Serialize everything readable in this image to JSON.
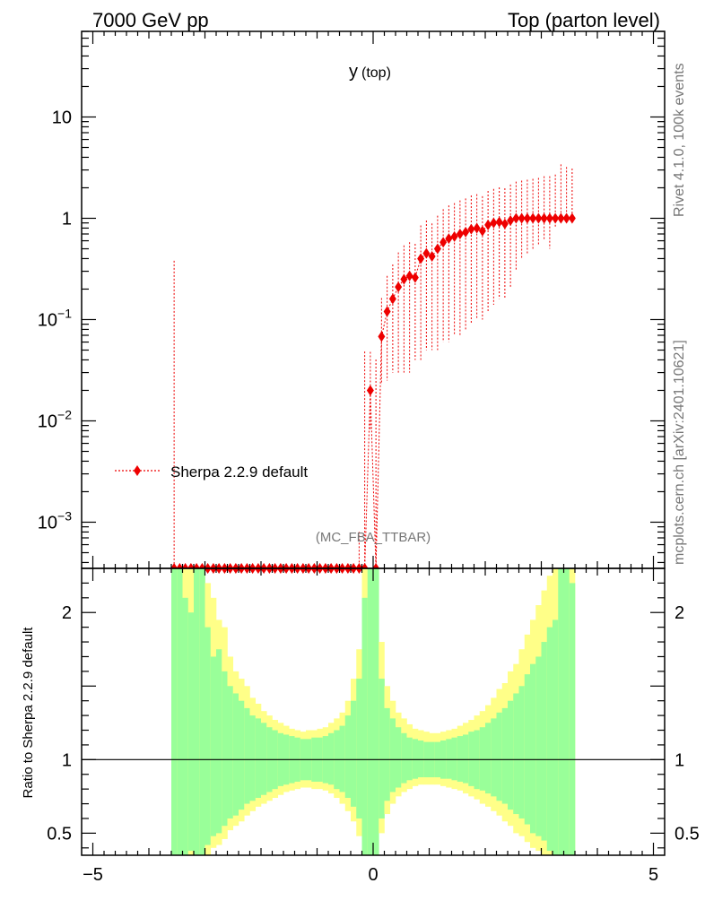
{
  "header": {
    "energy": "7000 GeV pp",
    "process": "Top (parton level)"
  },
  "side": {
    "rivet": "Rivet 4.1.0,  100k events",
    "source": "mcplots.cern.ch [arXiv:2401.10621]"
  },
  "chart_data": {
    "type": "line",
    "title_main": "y",
    "title_sub": "(top)",
    "analysis": "(MC_FBA_TTBAR)",
    "legend": "Sherpa 2.2.9 default",
    "ylabel_ratio": "Ratio to Sherpa 2.2.9 default",
    "colors": {
      "series": "#ee0000",
      "band_inner": "#99ff99",
      "band_outer": "#ffff88"
    },
    "xlim": [
      -5.2,
      5.2
    ],
    "ylim_main": [
      0.00035,
      70
    ],
    "ylim_ratio": [
      0.35,
      2.3
    ],
    "x_ticks": [
      "−5",
      "0",
      "5"
    ],
    "y_ticks_main": [
      {
        "value": 10,
        "base": "10",
        "exp": ""
      },
      {
        "value": 1,
        "base": "1",
        "exp": ""
      },
      {
        "value": 0.1,
        "base": "10",
        "exp": "−1"
      },
      {
        "value": 0.01,
        "base": "10",
        "exp": "−2"
      },
      {
        "value": 0.001,
        "base": "10",
        "exp": "−3"
      }
    ],
    "y_ticks_ratio": [
      {
        "value": 2,
        "label": "2"
      },
      {
        "value": 1,
        "label": "1"
      },
      {
        "value": 0.5,
        "label": "0.5"
      }
    ],
    "series": [
      {
        "name": "Sherpa 2.2.9 default",
        "x": [
          -3.55,
          -3.45,
          -3.35,
          -3.25,
          -3.15,
          -3.05,
          -2.95,
          -2.85,
          -2.75,
          -2.65,
          -2.55,
          -2.45,
          -2.35,
          -2.25,
          -2.15,
          -2.05,
          -1.95,
          -1.85,
          -1.75,
          -1.65,
          -1.55,
          -1.45,
          -1.35,
          -1.25,
          -1.15,
          -1.05,
          -0.95,
          -0.85,
          -0.75,
          -0.65,
          -0.55,
          -0.45,
          -0.35,
          -0.25,
          -0.15,
          -0.05,
          0.05,
          0.15,
          0.25,
          0.35,
          0.45,
          0.55,
          0.65,
          0.75,
          0.85,
          0.95,
          1.05,
          1.15,
          1.25,
          1.35,
          1.45,
          1.55,
          1.65,
          1.75,
          1.85,
          1.95,
          2.05,
          2.15,
          2.25,
          2.35,
          2.45,
          2.55,
          2.65,
          2.75,
          2.85,
          2.95,
          3.05,
          3.15,
          3.25,
          3.35,
          3.45,
          3.55
        ],
        "y": [
          0.00035,
          0.00035,
          0.00035,
          0.00035,
          0.00035,
          0.00035,
          0.00035,
          0.00035,
          0.00035,
          0.00035,
          0.00035,
          0.00035,
          0.00035,
          0.00035,
          0.00035,
          0.00035,
          0.00035,
          0.00035,
          0.00035,
          0.00035,
          0.00035,
          0.00035,
          0.00035,
          0.00035,
          0.00035,
          0.00035,
          0.00035,
          0.00035,
          0.00035,
          0.00035,
          0.00035,
          0.00035,
          0.00035,
          0.00035,
          0.00035,
          0.02,
          0.00035,
          0.068,
          0.12,
          0.16,
          0.21,
          0.25,
          0.27,
          0.26,
          0.4,
          0.45,
          0.42,
          0.5,
          0.58,
          0.63,
          0.66,
          0.7,
          0.73,
          0.78,
          0.8,
          0.75,
          0.86,
          0.9,
          0.92,
          0.88,
          0.95,
          1.0,
          1.0,
          1.0,
          1.0,
          1.0,
          1.0,
          1.0,
          1.0,
          1.0,
          1.0,
          1.0
        ],
        "err_up": [
          0.38,
          0.0,
          0.0,
          0.0,
          0.0,
          0.0,
          0.0,
          0.0,
          0.0,
          0.0,
          0.0,
          0.0,
          0.0,
          0.0,
          0.0,
          0.0,
          0.0,
          0.0,
          0.0,
          0.0,
          0.0,
          0.0,
          0.0,
          0.0,
          0.0,
          0.0,
          0.0,
          0.0,
          0.0,
          0.0,
          0.0,
          0.0,
          0.0,
          0.00045,
          0.048,
          0.028,
          0.04,
          0.095,
          0.15,
          0.19,
          0.25,
          0.29,
          0.31,
          0.3,
          0.45,
          0.5,
          0.47,
          0.56,
          0.65,
          0.71,
          0.75,
          0.8,
          0.84,
          0.9,
          0.93,
          0.9,
          1.0,
          1.05,
          1.1,
          1.1,
          1.2,
          1.3,
          1.35,
          1.4,
          1.45,
          1.5,
          1.6,
          1.6,
          1.7,
          2.4,
          2.2,
          2.1
        ],
        "err_dn": [
          0.0,
          0.0,
          0.0,
          0.0,
          0.0,
          0.0,
          0.0,
          0.0,
          0.0,
          0.0,
          0.0,
          0.0,
          0.0,
          0.0,
          0.0,
          0.0,
          0.0,
          0.0,
          0.0,
          0.0,
          0.0,
          0.0,
          0.0,
          0.0,
          0.0,
          0.0,
          0.0,
          0.0,
          0.0,
          0.0,
          0.0,
          0.0,
          0.0,
          0.0,
          0.0,
          0.012,
          0.0,
          0.045,
          0.095,
          0.13,
          0.18,
          0.22,
          0.24,
          0.22,
          0.36,
          0.4,
          0.37,
          0.45,
          0.52,
          0.57,
          0.59,
          0.63,
          0.65,
          0.69,
          0.7,
          0.65,
          0.74,
          0.76,
          0.76,
          0.72,
          0.74,
          0.7,
          0.6,
          0.55,
          0.5,
          0.45,
          0.4,
          0.5,
          0.2,
          0.0,
          0.0,
          0.0
        ]
      }
    ],
    "ratio_bands": {
      "edges": [
        -3.6,
        3.6
      ],
      "bin_width": 0.1,
      "inner_up": [
        2.3,
        2.3,
        2.1,
        2.0,
        2.3,
        2.3,
        1.9,
        1.7,
        1.75,
        1.6,
        1.5,
        1.45,
        1.4,
        1.35,
        1.3,
        1.28,
        1.25,
        1.22,
        1.2,
        1.18,
        1.17,
        1.16,
        1.15,
        1.14,
        1.14,
        1.15,
        1.15,
        1.16,
        1.18,
        1.2,
        1.23,
        1.3,
        1.4,
        1.55,
        2.1,
        2.3,
        2.3,
        1.55,
        1.35,
        1.28,
        1.22,
        1.18,
        1.15,
        1.14,
        1.13,
        1.12,
        1.12,
        1.12,
        1.13,
        1.14,
        1.15,
        1.16,
        1.17,
        1.19,
        1.2,
        1.22,
        1.25,
        1.28,
        1.32,
        1.35,
        1.4,
        1.45,
        1.5,
        1.58,
        1.65,
        1.7,
        1.8,
        1.9,
        1.95,
        2.3,
        2.3,
        2.2
      ],
      "outer_up": [
        2.3,
        2.3,
        2.3,
        2.3,
        2.3,
        2.3,
        2.2,
        2.1,
        1.95,
        1.9,
        1.7,
        1.6,
        1.55,
        1.5,
        1.42,
        1.38,
        1.33,
        1.3,
        1.27,
        1.25,
        1.23,
        1.21,
        1.2,
        1.19,
        1.2,
        1.2,
        1.21,
        1.22,
        1.25,
        1.28,
        1.32,
        1.4,
        1.55,
        1.75,
        2.3,
        2.3,
        2.3,
        1.8,
        1.5,
        1.4,
        1.32,
        1.28,
        1.24,
        1.21,
        1.2,
        1.19,
        1.18,
        1.18,
        1.19,
        1.2,
        1.21,
        1.23,
        1.25,
        1.27,
        1.3,
        1.33,
        1.37,
        1.42,
        1.48,
        1.52,
        1.6,
        1.65,
        1.75,
        1.85,
        1.95,
        2.05,
        2.15,
        2.25,
        2.3,
        2.3,
        2.3,
        2.3
      ],
      "inner_dn": [
        0.35,
        0.35,
        0.35,
        0.38,
        0.35,
        0.35,
        0.42,
        0.48,
        0.5,
        0.55,
        0.6,
        0.62,
        0.66,
        0.7,
        0.72,
        0.74,
        0.76,
        0.78,
        0.8,
        0.82,
        0.83,
        0.84,
        0.85,
        0.86,
        0.86,
        0.85,
        0.85,
        0.84,
        0.83,
        0.8,
        0.78,
        0.74,
        0.68,
        0.6,
        0.35,
        0.35,
        0.35,
        0.6,
        0.72,
        0.78,
        0.81,
        0.84,
        0.86,
        0.87,
        0.88,
        0.88,
        0.88,
        0.88,
        0.87,
        0.87,
        0.86,
        0.85,
        0.84,
        0.82,
        0.8,
        0.79,
        0.77,
        0.75,
        0.72,
        0.7,
        0.66,
        0.63,
        0.6,
        0.56,
        0.5,
        0.48,
        0.45,
        0.38,
        0.35,
        0.35,
        0.35,
        0.35
      ],
      "outer_dn": [
        0.35,
        0.35,
        0.35,
        0.35,
        0.35,
        0.35,
        0.35,
        0.4,
        0.42,
        0.46,
        0.52,
        0.55,
        0.58,
        0.62,
        0.65,
        0.68,
        0.7,
        0.72,
        0.74,
        0.76,
        0.78,
        0.79,
        0.8,
        0.81,
        0.81,
        0.8,
        0.8,
        0.79,
        0.77,
        0.74,
        0.7,
        0.65,
        0.58,
        0.48,
        0.35,
        0.35,
        0.35,
        0.5,
        0.63,
        0.7,
        0.75,
        0.78,
        0.8,
        0.82,
        0.83,
        0.83,
        0.83,
        0.83,
        0.82,
        0.81,
        0.8,
        0.79,
        0.77,
        0.75,
        0.73,
        0.7,
        0.68,
        0.65,
        0.62,
        0.58,
        0.55,
        0.5,
        0.48,
        0.44,
        0.4,
        0.38,
        0.35,
        0.35,
        0.35,
        0.35,
        0.35,
        0.35
      ]
    }
  }
}
